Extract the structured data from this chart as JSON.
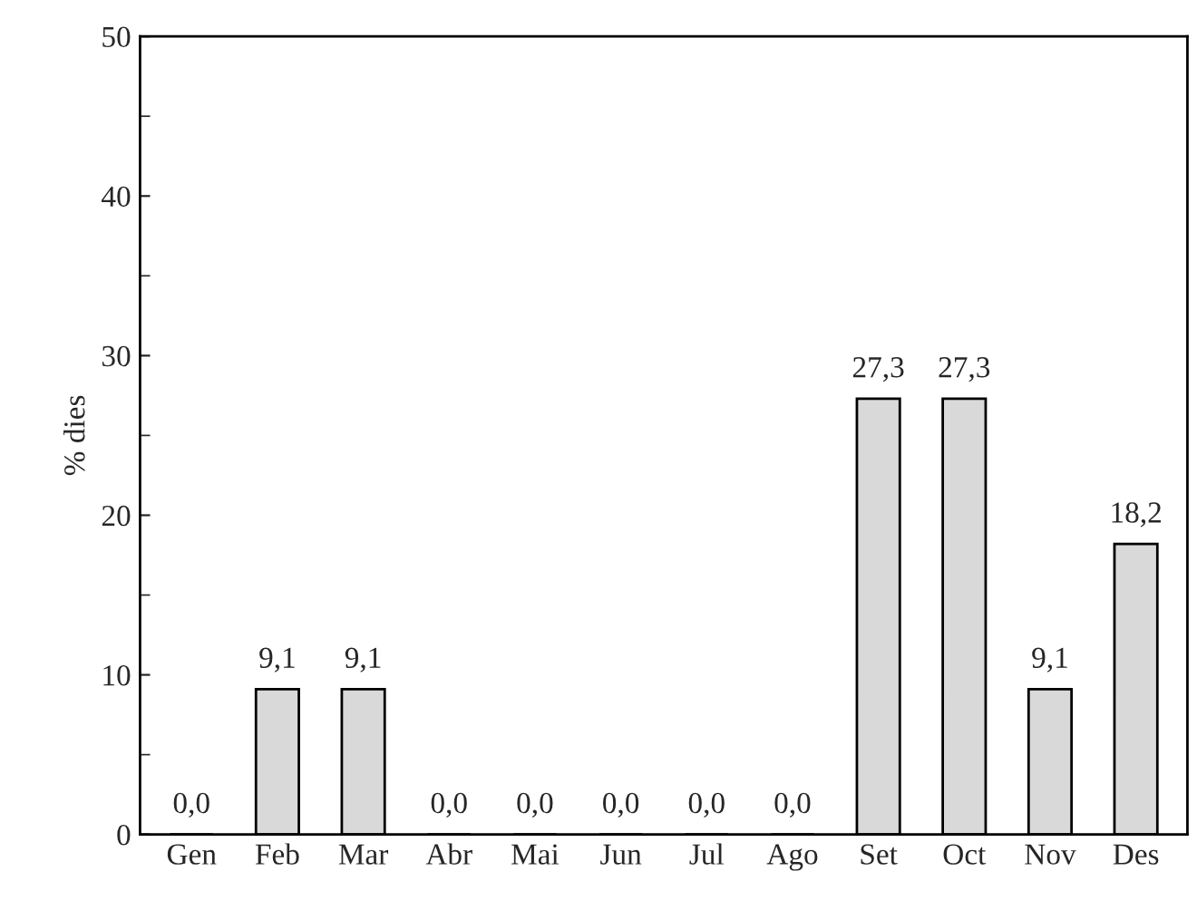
{
  "chart_data": {
    "type": "bar",
    "ylabel": "% dies",
    "categories": [
      "Gen",
      "Feb",
      "Mar",
      "Abr",
      "Mai",
      "Jun",
      "Jul",
      "Ago",
      "Set",
      "Oct",
      "Nov",
      "Des"
    ],
    "values": [
      0.0,
      9.1,
      9.1,
      0.0,
      0.0,
      0.0,
      0.0,
      0.0,
      27.3,
      27.3,
      9.1,
      18.2
    ],
    "value_labels": [
      "0,0",
      "9,1",
      "9,1",
      "0,0",
      "0,0",
      "0,0",
      "0,0",
      "0,0",
      "27,3",
      "27,3",
      "9,1",
      "18,2"
    ],
    "color": "#d9d9d9",
    "ylim": [
      0,
      50
    ],
    "yticks": [
      0,
      10,
      20,
      30,
      40,
      50
    ],
    "grid": false,
    "legend": false
  }
}
